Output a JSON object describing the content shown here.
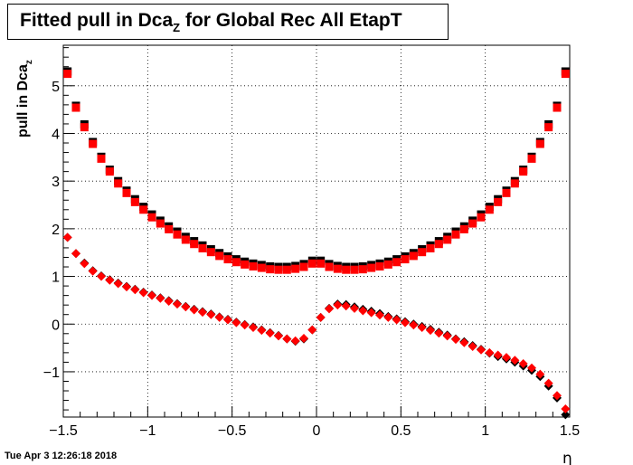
{
  "chart_data": {
    "type": "scatter",
    "title_main": "Fitted pull in Dca",
    "title_sub": "Z",
    "title_rest": " for Global Rec All EtapT",
    "xlabel": "η",
    "ylabel_main": "pull in Dca",
    "ylabel_sub": "z",
    "xlim": [
      -1.5,
      1.5
    ],
    "ylim": [
      -1.95,
      5.85
    ],
    "grid": true,
    "xticks": [
      "−1.5",
      "−1",
      "−0.5",
      "0",
      "0.5",
      "1",
      "1.5"
    ],
    "yticks": [
      "−1",
      "0",
      "1",
      "2",
      "3",
      "4",
      "5"
    ],
    "x": [
      -1.475,
      -1.425,
      -1.375,
      -1.325,
      -1.275,
      -1.225,
      -1.175,
      -1.125,
      -1.075,
      -1.025,
      -0.975,
      -0.925,
      -0.875,
      -0.825,
      -0.775,
      -0.725,
      -0.675,
      -0.625,
      -0.575,
      -0.525,
      -0.475,
      -0.425,
      -0.375,
      -0.325,
      -0.275,
      -0.225,
      -0.175,
      -0.125,
      -0.075,
      -0.025,
      0.025,
      0.075,
      0.125,
      0.175,
      0.225,
      0.275,
      0.325,
      0.375,
      0.425,
      0.475,
      0.525,
      0.575,
      0.625,
      0.675,
      0.725,
      0.775,
      0.825,
      0.875,
      0.925,
      0.975,
      1.025,
      1.075,
      1.125,
      1.175,
      1.225,
      1.275,
      1.325,
      1.375,
      1.425,
      1.475
    ],
    "series": [
      {
        "marker": "square",
        "color": "#000000",
        "values": [
          5.3,
          4.58,
          4.19,
          3.82,
          3.51,
          3.24,
          3.0,
          2.8,
          2.62,
          2.46,
          2.3,
          2.17,
          2.05,
          1.94,
          1.83,
          1.74,
          1.65,
          1.57,
          1.49,
          1.42,
          1.36,
          1.31,
          1.27,
          1.24,
          1.21,
          1.2,
          1.2,
          1.22,
          1.26,
          1.33,
          1.33,
          1.26,
          1.22,
          1.2,
          1.2,
          1.21,
          1.24,
          1.27,
          1.31,
          1.36,
          1.42,
          1.49,
          1.57,
          1.65,
          1.74,
          1.83,
          1.94,
          2.05,
          2.17,
          2.3,
          2.46,
          2.62,
          2.8,
          3.0,
          3.24,
          3.51,
          3.82,
          4.19,
          4.58,
          5.3
        ]
      },
      {
        "marker": "square",
        "color": "#ff0000",
        "values": [
          5.25,
          4.54,
          4.13,
          3.78,
          3.47,
          3.2,
          2.95,
          2.75,
          2.56,
          2.4,
          2.24,
          2.11,
          1.99,
          1.88,
          1.77,
          1.68,
          1.59,
          1.51,
          1.43,
          1.36,
          1.3,
          1.25,
          1.21,
          1.18,
          1.15,
          1.14,
          1.14,
          1.16,
          1.2,
          1.27,
          1.27,
          1.2,
          1.16,
          1.14,
          1.14,
          1.15,
          1.18,
          1.21,
          1.25,
          1.3,
          1.36,
          1.43,
          1.51,
          1.59,
          1.68,
          1.77,
          1.88,
          1.99,
          2.11,
          2.24,
          2.4,
          2.56,
          2.75,
          2.95,
          3.2,
          3.47,
          3.78,
          4.13,
          4.54,
          5.25
        ]
      },
      {
        "marker": "diamond",
        "color": "#000000",
        "values": [
          1.82,
          1.48,
          1.28,
          1.12,
          1.01,
          0.93,
          0.86,
          0.79,
          0.73,
          0.67,
          0.61,
          0.55,
          0.49,
          0.43,
          0.37,
          0.31,
          0.26,
          0.21,
          0.15,
          0.1,
          0.04,
          -0.01,
          -0.06,
          -0.12,
          -0.18,
          -0.24,
          -0.31,
          -0.36,
          -0.31,
          -0.12,
          0.14,
          0.33,
          0.42,
          0.41,
          0.36,
          0.31,
          0.27,
          0.22,
          0.16,
          0.11,
          0.05,
          0.0,
          -0.05,
          -0.11,
          -0.17,
          -0.23,
          -0.31,
          -0.37,
          -0.45,
          -0.53,
          -0.61,
          -0.68,
          -0.73,
          -0.8,
          -0.88,
          -0.97,
          -1.1,
          -1.3,
          -1.55,
          -1.9
        ]
      },
      {
        "marker": "diamond",
        "color": "#ff0000",
        "values": [
          1.82,
          1.48,
          1.27,
          1.11,
          1.0,
          0.92,
          0.85,
          0.78,
          0.72,
          0.66,
          0.6,
          0.54,
          0.48,
          0.42,
          0.36,
          0.3,
          0.25,
          0.2,
          0.14,
          0.09,
          0.03,
          -0.02,
          -0.07,
          -0.13,
          -0.19,
          -0.25,
          -0.31,
          -0.35,
          -0.3,
          -0.12,
          0.14,
          0.32,
          0.4,
          0.38,
          0.33,
          0.28,
          0.24,
          0.19,
          0.14,
          0.09,
          0.03,
          -0.02,
          -0.07,
          -0.13,
          -0.19,
          -0.25,
          -0.32,
          -0.39,
          -0.47,
          -0.54,
          -0.6,
          -0.65,
          -0.7,
          -0.76,
          -0.83,
          -0.92,
          -1.05,
          -1.24,
          -1.5,
          -1.78
        ]
      }
    ]
  },
  "datestamp": "Tue Apr  3 12:26:18 2018"
}
